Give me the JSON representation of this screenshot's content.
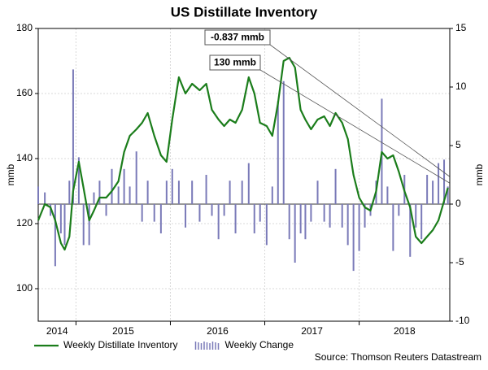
{
  "chart_data": {
    "type": "combo",
    "title": "US Distillate Inventory",
    "ylabel": "mmb",
    "y2label": "mmb",
    "x": [
      2014.6,
      2014.67,
      2014.73,
      2014.78,
      2014.84,
      2014.88,
      2014.93,
      2014.97,
      2015.03,
      2015.08,
      2015.14,
      2015.19,
      2015.25,
      2015.32,
      2015.38,
      2015.45,
      2015.51,
      2015.57,
      2015.64,
      2015.7,
      2015.76,
      2015.83,
      2015.9,
      2015.96,
      2016.02,
      2016.09,
      2016.16,
      2016.23,
      2016.31,
      2016.38,
      2016.44,
      2016.51,
      2016.57,
      2016.63,
      2016.69,
      2016.76,
      2016.83,
      2016.89,
      2016.95,
      2017.02,
      2017.08,
      2017.14,
      2017.2,
      2017.26,
      2017.32,
      2017.38,
      2017.43,
      2017.49,
      2017.56,
      2017.63,
      2017.69,
      2017.75,
      2017.82,
      2017.88,
      2017.94,
      2018.0,
      2018.06,
      2018.12,
      2018.18,
      2018.24,
      2018.3,
      2018.36,
      2018.42,
      2018.48,
      2018.54,
      2018.6,
      2018.66,
      2018.72,
      2018.78,
      2018.84,
      2018.9,
      2018.94
    ],
    "xlim": [
      2014.6,
      2018.96
    ],
    "xticks": [
      2014,
      2015,
      2016,
      2017,
      2018
    ],
    "ylim": [
      90,
      180
    ],
    "yticks": [
      100,
      120,
      140,
      160,
      180
    ],
    "y2lim": [
      -10,
      15
    ],
    "y2ticks": [
      -10,
      -5,
      0,
      5,
      10,
      15
    ],
    "grid": true,
    "legend": "bottom",
    "series": [
      {
        "name": "Weekly Distillate Inventory",
        "type": "line",
        "color": "#1b7d1b",
        "values": [
          121,
          126,
          125,
          121,
          114,
          112,
          116,
          130,
          139,
          131,
          121,
          124,
          128,
          128,
          130,
          133,
          142,
          147,
          149,
          151,
          154,
          147,
          141,
          139,
          152,
          165,
          160,
          163,
          161,
          163,
          155,
          152,
          150,
          152,
          151,
          155,
          165,
          160,
          151,
          150,
          147,
          157,
          170,
          171,
          168,
          155,
          152,
          149,
          152,
          153,
          150,
          154,
          151,
          146,
          135,
          128,
          125,
          124,
          130,
          142,
          140,
          141,
          136,
          130,
          125,
          116,
          114,
          116,
          118,
          121,
          127,
          131
        ]
      },
      {
        "name": "Weekly Change",
        "type": "bar",
        "axis": "y2",
        "color": "#7a7ab8",
        "values": [
          1.5,
          1,
          -1,
          -5.3,
          -2.5,
          -3.5,
          2,
          11.5,
          4,
          -3.5,
          -3.5,
          1,
          2,
          -1,
          3,
          1.5,
          3,
          1.5,
          4.5,
          -1.5,
          2,
          -1.5,
          -2.5,
          2,
          3,
          2,
          -2,
          2,
          -1.5,
          2.5,
          -1,
          -3,
          -1,
          2,
          -2.5,
          2,
          3.5,
          -2.5,
          -1.5,
          -3.5,
          1.5,
          8.8,
          10.5,
          -3,
          -5,
          -2.5,
          -3,
          -1.5,
          2,
          -1.5,
          -2,
          3,
          -2,
          -3.5,
          -5.7,
          -4,
          -2,
          -1,
          2,
          9,
          1.5,
          -4,
          -1,
          2.5,
          -4.5,
          -2,
          -3,
          2.5,
          2,
          3.5,
          3.8,
          1.5
        ]
      }
    ],
    "annotations": [
      "-0.837 mmb",
      "130 mmb"
    ],
    "source": "Source: Thomson Reuters Datastream"
  }
}
